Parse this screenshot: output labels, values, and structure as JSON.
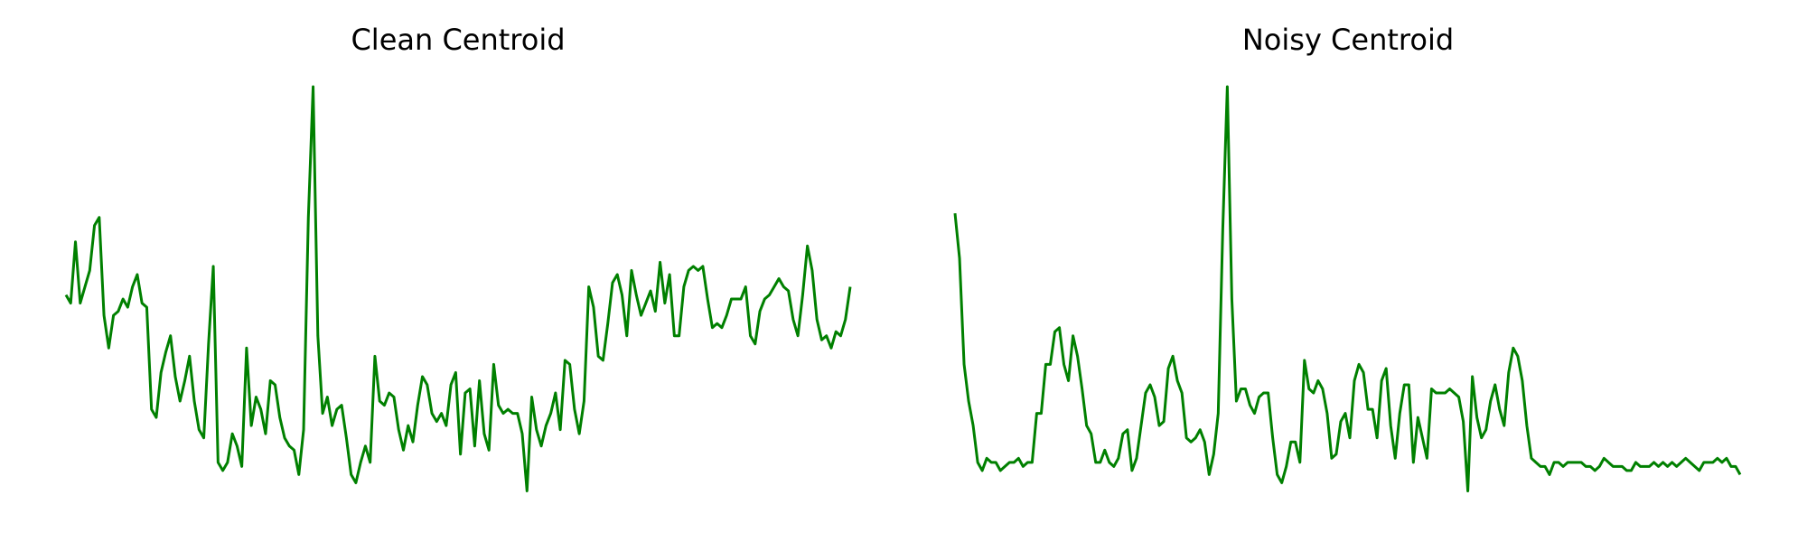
{
  "chart_data": [
    {
      "type": "line",
      "title": "Clean Centroid",
      "color": "#008000",
      "ylim": [
        0,
        100
      ],
      "values": [
        49,
        47,
        62,
        47,
        51,
        55,
        66,
        68,
        44,
        36,
        44,
        45,
        48,
        46,
        51,
        54,
        47,
        46,
        21,
        19,
        30,
        35,
        39,
        29,
        23,
        28,
        34,
        23,
        16,
        14,
        37,
        56,
        8,
        6,
        8,
        15,
        12,
        7,
        36,
        17,
        24,
        21,
        15,
        28,
        27,
        19,
        14,
        12,
        11,
        5,
        16,
        68,
        100,
        39,
        20,
        24,
        17,
        21,
        22,
        14,
        5,
        3,
        8,
        12,
        8,
        34,
        23,
        22,
        25,
        24,
        16,
        11,
        17,
        13,
        22,
        29,
        27,
        20,
        18,
        20,
        17,
        27,
        30,
        10,
        25,
        26,
        12,
        28,
        15,
        11,
        32,
        22,
        20,
        21,
        20,
        20,
        15,
        1,
        24,
        16,
        12,
        17,
        20,
        25,
        16,
        33,
        32,
        21,
        15,
        23,
        51,
        46,
        34,
        33,
        42,
        52,
        54,
        49,
        39,
        55,
        49,
        44,
        47,
        50,
        45,
        57,
        47,
        54,
        39,
        39,
        51,
        55,
        56,
        55,
        56,
        48,
        41,
        42,
        41,
        44,
        48,
        48,
        48,
        51,
        39,
        37,
        45,
        48,
        49,
        51,
        53,
        51,
        50,
        43,
        39,
        49,
        61,
        55,
        43,
        38,
        39,
        36,
        40,
        39,
        43,
        51
      ]
    },
    {
      "type": "line",
      "title": "Noisy Centroid",
      "color": "#008000",
      "ylim": [
        0,
        100
      ],
      "values": [
        69,
        58,
        32,
        23,
        17,
        8,
        6,
        9,
        8,
        8,
        6,
        7,
        8,
        8,
        9,
        7,
        8,
        8,
        20,
        20,
        32,
        32,
        40,
        41,
        32,
        28,
        39,
        34,
        26,
        17,
        15,
        8,
        8,
        11,
        8,
        7,
        9,
        15,
        16,
        6,
        9,
        17,
        25,
        27,
        24,
        17,
        18,
        31,
        34,
        28,
        25,
        14,
        13,
        14,
        16,
        13,
        5,
        10,
        20,
        65,
        100,
        48,
        23,
        26,
        26,
        22,
        20,
        24,
        25,
        25,
        14,
        5,
        3,
        7,
        13,
        13,
        8,
        33,
        26,
        25,
        28,
        26,
        20,
        9,
        10,
        18,
        20,
        14,
        28,
        32,
        30,
        21,
        21,
        14,
        28,
        31,
        17,
        9,
        20,
        27,
        27,
        8,
        19,
        14,
        9,
        26,
        25,
        25,
        25,
        26,
        25,
        24,
        18,
        1,
        29,
        19,
        14,
        16,
        23,
        27,
        21,
        17,
        30,
        36,
        34,
        28,
        17,
        9,
        8,
        7,
        7,
        5,
        8,
        8,
        7,
        8,
        8,
        8,
        8,
        7,
        7,
        6,
        7,
        9,
        8,
        7,
        7,
        7,
        6,
        6,
        8,
        7,
        7,
        7,
        8,
        7,
        8,
        7,
        8,
        7,
        8,
        9,
        8,
        7,
        6,
        8,
        8,
        8,
        9,
        8,
        9,
        7,
        7,
        5
      ]
    }
  ]
}
